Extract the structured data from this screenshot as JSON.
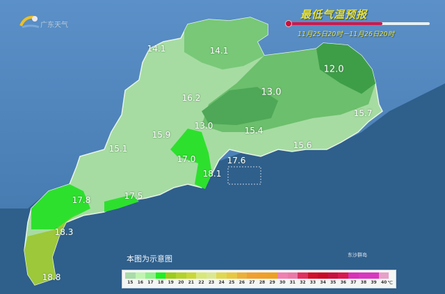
{
  "header": {
    "title": "最低气温预报",
    "subtitle": "11月25日20时－11月26日20时",
    "logo_text": "广东天气"
  },
  "colors": {
    "title": "#e8e23a",
    "thermometer": "#d0184a",
    "sea": "#2f5f8b",
    "land_background": "#4f86bf"
  },
  "stations": [
    {
      "value": "14.1"
    },
    {
      "value": "14.1"
    },
    {
      "value": "12.0"
    },
    {
      "value": "16.2"
    },
    {
      "value": "13.0"
    },
    {
      "value": "13.0"
    },
    {
      "value": "15.4"
    },
    {
      "value": "15.9"
    },
    {
      "value": "15.1"
    },
    {
      "value": "17.0"
    },
    {
      "value": "18.1"
    },
    {
      "value": "17.6"
    },
    {
      "value": "15.7"
    },
    {
      "value": "15.6"
    },
    {
      "value": "17.5"
    },
    {
      "value": "17.8"
    },
    {
      "value": "18.3"
    },
    {
      "value": "18.8"
    }
  ],
  "map_labels": {
    "note": "本图为示意图",
    "island": "东沙群岛"
  },
  "legend": {
    "unit": "℃",
    "entries": [
      {
        "label": "15",
        "color": "#a8dca8"
      },
      {
        "label": "16",
        "color": "#bff5b0"
      },
      {
        "label": "17",
        "color": "#8ff08a"
      },
      {
        "label": "18",
        "color": "#22ee22"
      },
      {
        "label": "19",
        "color": "#9ccc1c"
      },
      {
        "label": "20",
        "color": "#b4d22a"
      },
      {
        "label": "21",
        "color": "#c8d838"
      },
      {
        "label": "22",
        "color": "#d8e878"
      },
      {
        "label": "23",
        "color": "#dce890"
      },
      {
        "label": "24",
        "color": "#e0d850"
      },
      {
        "label": "25",
        "color": "#e8c840"
      },
      {
        "label": "26",
        "color": "#ecb038"
      },
      {
        "label": "27",
        "color": "#f0a030"
      },
      {
        "label": "28",
        "color": "#f0a028"
      },
      {
        "label": "29",
        "color": "#eea024"
      },
      {
        "label": "30",
        "color": "#f080b0"
      },
      {
        "label": "31",
        "color": "#ec78a8"
      },
      {
        "label": "32",
        "color": "#e03060"
      },
      {
        "label": "33",
        "color": "#d0102c"
      },
      {
        "label": "34",
        "color": "#c80a28"
      },
      {
        "label": "35",
        "color": "#c81040"
      },
      {
        "label": "36",
        "color": "#d81850"
      },
      {
        "label": "37",
        "color": "#d830b8"
      },
      {
        "label": "38",
        "color": "#d838c0"
      },
      {
        "label": "39",
        "color": "#d838c0"
      },
      {
        "label": "40",
        "color": "#e8a0c8"
      }
    ]
  },
  "thermometer_fill": 0.66
}
